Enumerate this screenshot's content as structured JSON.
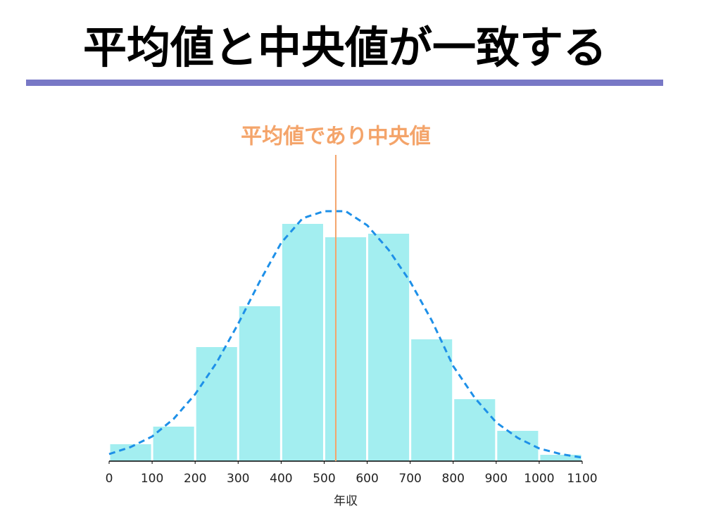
{
  "chart_data": {
    "type": "histogram",
    "title": "平均値と中央値が一致する",
    "x_label": "年収",
    "bins": [
      0,
      100,
      200,
      300,
      400,
      500,
      600,
      700,
      800,
      900,
      1000,
      1100
    ],
    "counts": [
      24,
      49,
      162,
      220,
      337,
      318,
      323,
      173,
      88,
      43,
      9
    ],
    "color": "#a3eef0",
    "xlim": [
      0,
      1100
    ],
    "xticks": [
      0,
      100,
      200,
      300,
      400,
      500,
      600,
      700,
      800,
      900,
      1000,
      1100
    ],
    "ylim": [
      0,
      365
    ],
    "curve": {
      "color": "#1e90e8",
      "x": [
        0,
        50,
        100,
        150,
        200,
        250,
        300,
        350,
        400,
        450,
        500,
        550,
        600,
        650,
        700,
        750,
        800,
        850,
        900,
        950,
        1000,
        1050,
        1100
      ],
      "values": [
        10,
        20,
        35,
        60,
        95,
        140,
        195,
        255,
        310,
        345,
        355,
        355,
        335,
        300,
        255,
        200,
        135,
        90,
        55,
        33,
        18,
        10,
        5
      ]
    },
    "marker": {
      "x": 527,
      "label": "平均値であり中央値",
      "color": "#f4a46a"
    }
  }
}
